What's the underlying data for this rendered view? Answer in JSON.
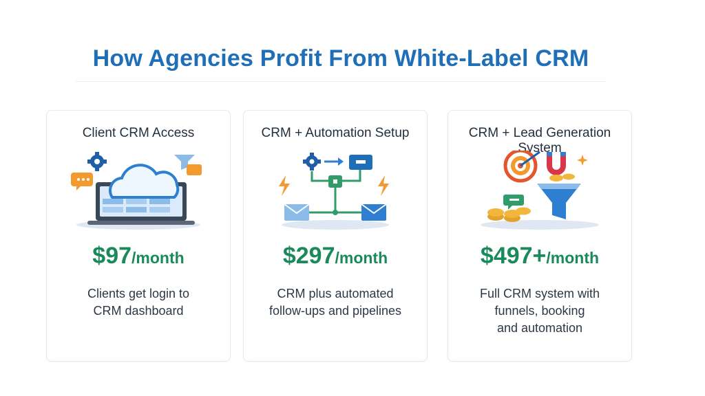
{
  "page": {
    "title": "How Agencies Profit From White-Label CRM"
  },
  "cards": [
    {
      "title": "Client CRM Access",
      "price": "$97",
      "period": "/month",
      "description": "Clients get login to\nCRM dashboard",
      "icons": [
        "gear-icon",
        "cloud-icon",
        "chat-bubble-icon",
        "funnel-icon",
        "laptop-icon"
      ]
    },
    {
      "title": "CRM + Automation Setup",
      "price": "$297",
      "period": "/month",
      "description": "CRM plus automated\nfollow-ups and pipelines",
      "icons": [
        "gear-icon",
        "arrow-right-icon",
        "message-icon",
        "workflow-node-icon",
        "lightning-icon",
        "envelope-icon"
      ]
    },
    {
      "title": "CRM + Lead Generation System",
      "price": "$497+",
      "period": "/month",
      "description": "Full CRM system with\nfunnels, booking\nand automation",
      "icons": [
        "target-icon",
        "magnet-icon",
        "coins-icon",
        "funnel-icon",
        "chat-bubble-icon",
        "sparkle-icon"
      ]
    }
  ],
  "colors": {
    "title": "#1f6fb8",
    "price": "#1a8a5d",
    "text": "#2c3845",
    "accent_blue": "#2e7fd1",
    "accent_orange": "#f29a2e",
    "accent_green": "#2f9c6a"
  }
}
